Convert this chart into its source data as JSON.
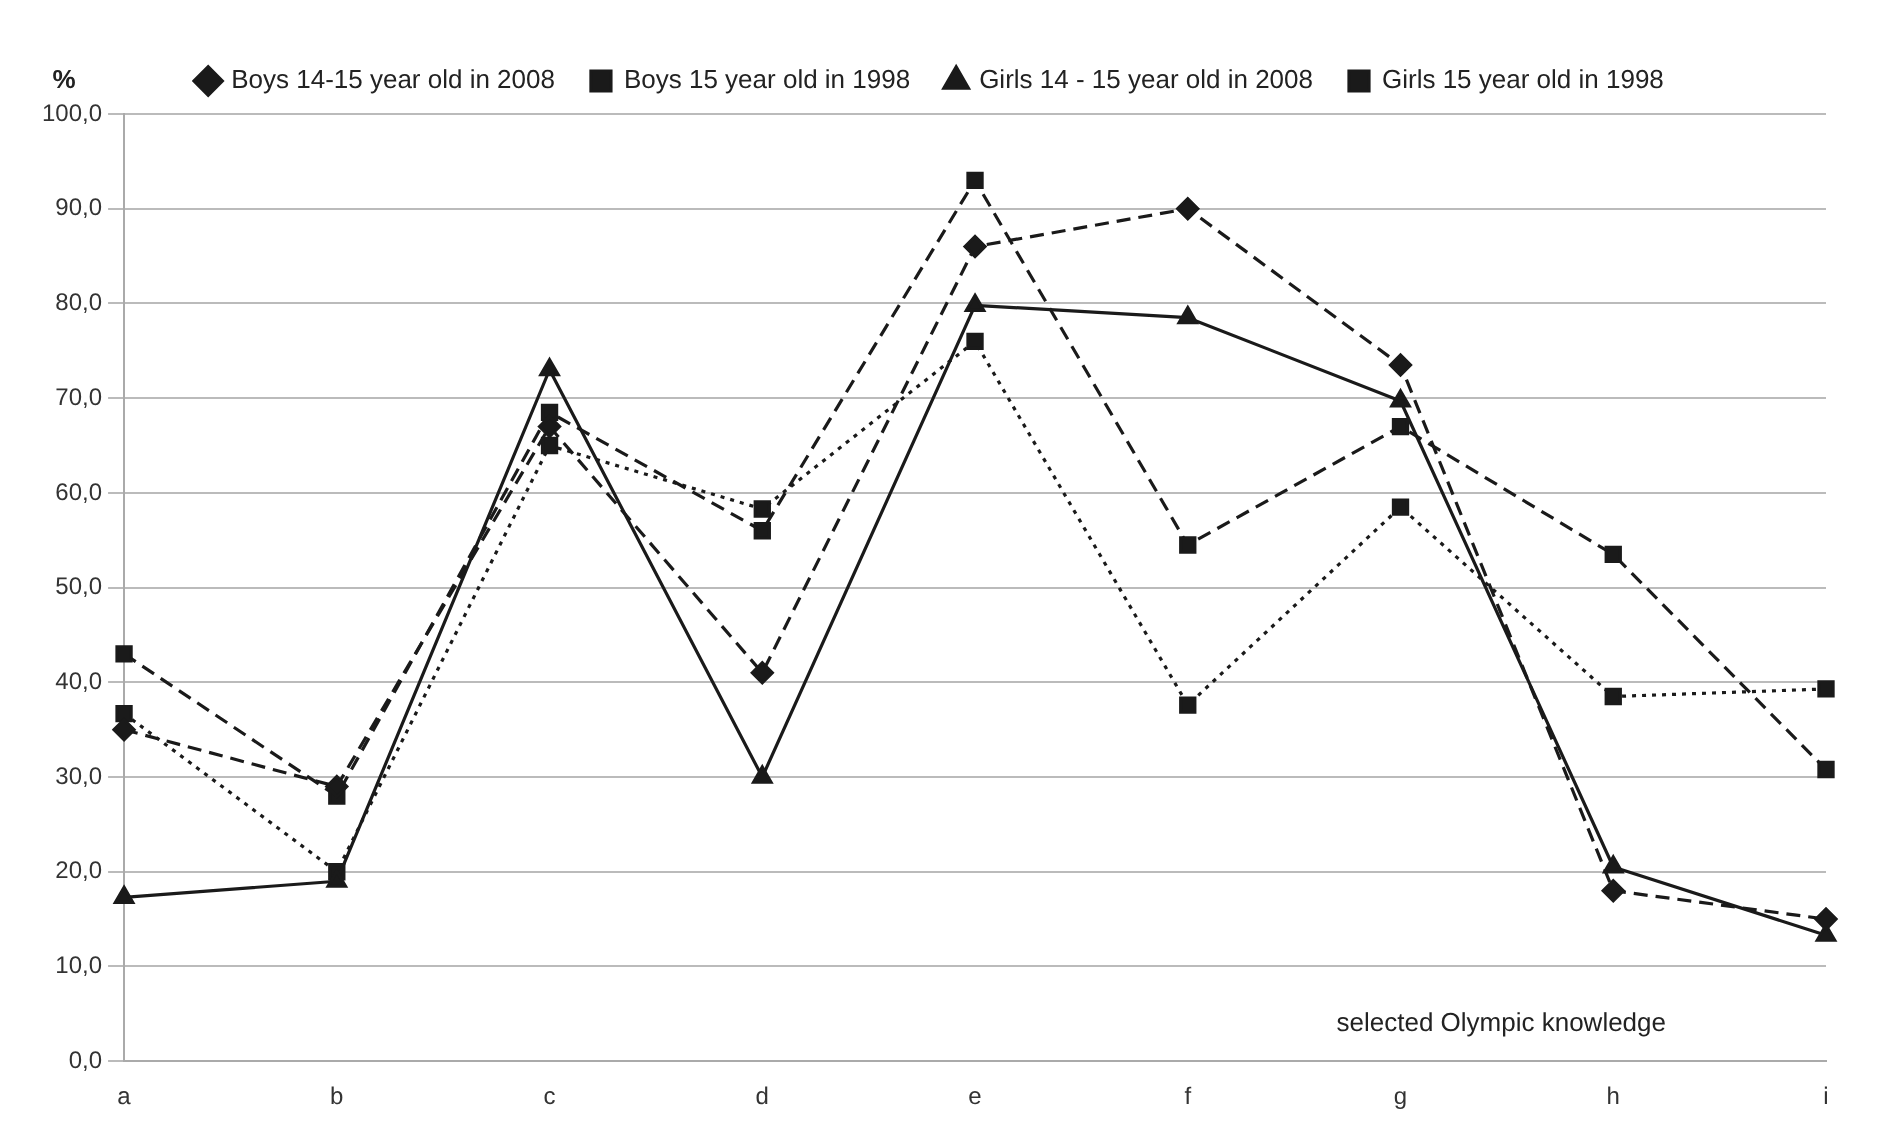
{
  "chart_data": {
    "type": "line",
    "ylabel": "%",
    "categories": [
      "a",
      "b",
      "c",
      "d",
      "e",
      "f",
      "g",
      "h",
      "i"
    ],
    "series": [
      {
        "name": "Boys 14-15 year old in 2008",
        "color": "#1a1a1a",
        "line_style": "dashed",
        "marker": "diamond",
        "values": [
          35,
          29,
          67,
          41,
          86,
          90,
          73.5,
          18,
          15
        ]
      },
      {
        "name": "Boys 15 year old in 1998",
        "color": "#1a1a1a",
        "line_style": "dashed",
        "marker": "square",
        "values": [
          43,
          28,
          68.5,
          56,
          93,
          54.5,
          67,
          53.5,
          30.8
        ]
      },
      {
        "name": "Girls 14 - 15 year old in 2008",
        "color": "#1a1a1a",
        "line_style": "solid",
        "marker": "triangle",
        "values": [
          17.3,
          19,
          73,
          30,
          79.8,
          78.5,
          69.7,
          20.5,
          13.3
        ]
      },
      {
        "name": "Girls 15 year old in 1998",
        "color": "#1a1a1a",
        "line_style": "dotted",
        "marker": "square",
        "values": [
          36.7,
          20,
          65,
          58.3,
          76,
          37.6,
          58.5,
          38.5,
          39.3
        ]
      }
    ],
    "ylim": [
      0,
      100
    ],
    "yticks": [
      {
        "value": 0,
        "label": "0,0"
      },
      {
        "value": 10,
        "label": "10,0"
      },
      {
        "value": 20,
        "label": "20,0"
      },
      {
        "value": 30,
        "label": "30,0"
      },
      {
        "value": 40,
        "label": "40,0"
      },
      {
        "value": 50,
        "label": "50,0"
      },
      {
        "value": 60,
        "label": "60,0"
      },
      {
        "value": 70,
        "label": "70,0"
      },
      {
        "value": 80,
        "label": "80,0"
      },
      {
        "value": 90,
        "label": "90,0"
      },
      {
        "value": 100,
        "label": "100,0"
      }
    ],
    "grid": "y",
    "legend": "top",
    "annotations": [
      "selected Olympic knowledge"
    ]
  }
}
